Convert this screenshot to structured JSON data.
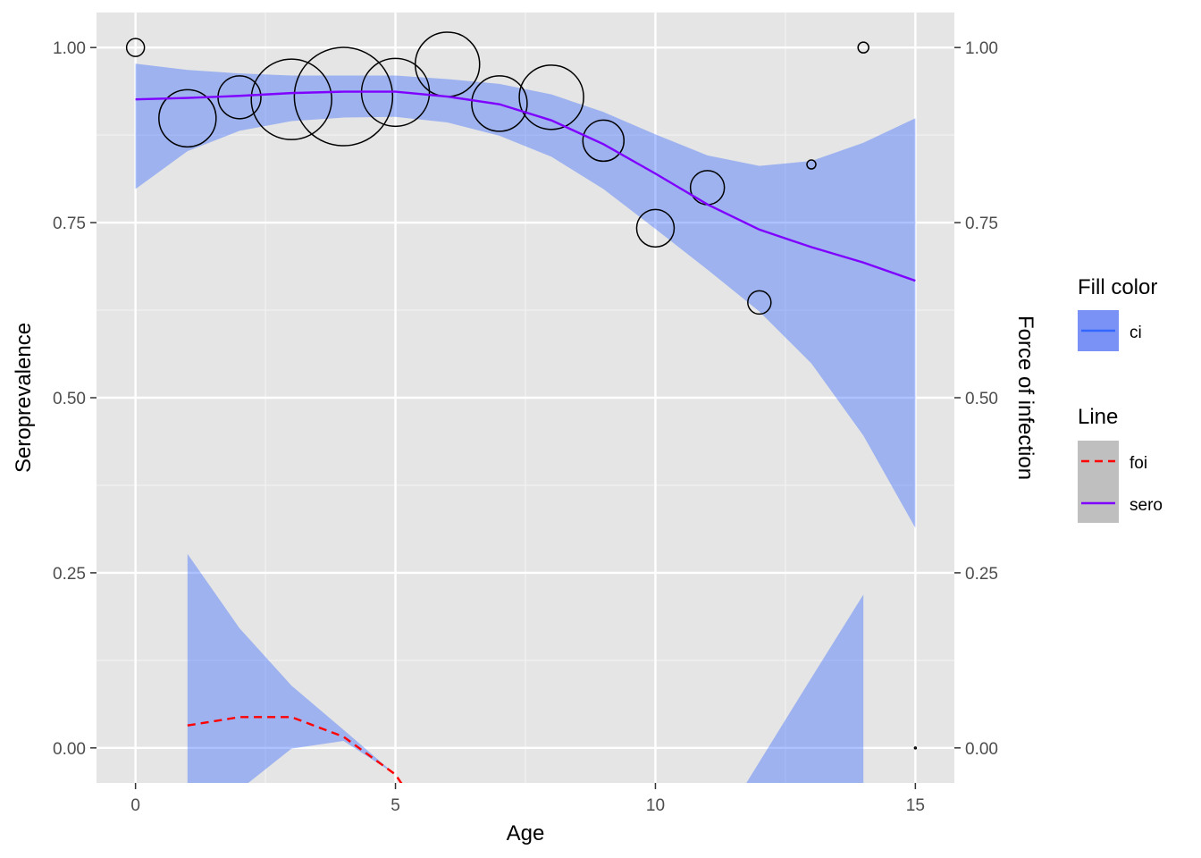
{
  "chart_data": {
    "type": "line",
    "xlabel": "Age",
    "ylabel": "Seroprevalence",
    "y2label": "Force of infection",
    "xlim": [
      -0.75,
      15.75
    ],
    "ylim": [
      -0.05,
      1.05
    ],
    "x_ticks": [
      0,
      5,
      10,
      15
    ],
    "x_tick_labels": [
      "0",
      "5",
      "10",
      "15"
    ],
    "y_ticks": [
      0,
      0.25,
      0.5,
      0.75,
      1.0
    ],
    "y_tick_labels": [
      "0.00",
      "0.25",
      "0.50",
      "0.75",
      "1.00"
    ],
    "y2_tick_labels": [
      "0.00",
      "0.25",
      "0.50",
      "0.75",
      "1.00"
    ],
    "grid": true,
    "background": "#e5e5e5",
    "legend_position": "right",
    "legends": [
      {
        "title": "Fill color",
        "entries": [
          {
            "label": "ci",
            "kind": "fill",
            "color": "#3366ff"
          }
        ]
      },
      {
        "title": "Line",
        "entries": [
          {
            "label": "foi",
            "kind": "dashed",
            "color": "#ff0000"
          },
          {
            "label": "sero",
            "kind": "solid",
            "color": "#7f00ff"
          }
        ]
      }
    ],
    "points": [
      {
        "x": 0,
        "y": 1.0,
        "r": 10
      },
      {
        "x": 1,
        "y": 0.899,
        "r": 32
      },
      {
        "x": 2,
        "y": 0.929,
        "r": 24
      },
      {
        "x": 3,
        "y": 0.926,
        "r": 45
      },
      {
        "x": 4,
        "y": 0.93,
        "r": 55
      },
      {
        "x": 5,
        "y": 0.936,
        "r": 38
      },
      {
        "x": 6,
        "y": 0.976,
        "r": 36
      },
      {
        "x": 7,
        "y": 0.92,
        "r": 31
      },
      {
        "x": 8,
        "y": 0.929,
        "r": 36
      },
      {
        "x": 9,
        "y": 0.867,
        "r": 23
      },
      {
        "x": 10,
        "y": 0.742,
        "r": 21
      },
      {
        "x": 11,
        "y": 0.8,
        "r": 19
      },
      {
        "x": 12,
        "y": 0.636,
        "r": 13
      },
      {
        "x": 13,
        "y": 0.833,
        "r": 5
      },
      {
        "x": 14,
        "y": 1.0,
        "r": 6
      },
      {
        "x": 15,
        "y": 0.0,
        "r": 1
      }
    ],
    "sero_line": {
      "x": [
        0,
        1,
        2,
        3,
        4,
        5,
        6,
        7,
        8,
        9,
        10,
        11,
        12,
        13,
        14,
        15
      ],
      "y": [
        0.926,
        0.928,
        0.931,
        0.935,
        0.937,
        0.937,
        0.93,
        0.919,
        0.896,
        0.862,
        0.82,
        0.776,
        0.74,
        0.715,
        0.693,
        0.667
      ]
    },
    "sero_ci": {
      "x": [
        0,
        1,
        2,
        3,
        4,
        5,
        6,
        7,
        8,
        9,
        10,
        11,
        12,
        13,
        14,
        15
      ],
      "upper": [
        0.977,
        0.968,
        0.963,
        0.96,
        0.96,
        0.96,
        0.955,
        0.948,
        0.933,
        0.908,
        0.876,
        0.846,
        0.831,
        0.838,
        0.864,
        0.899
      ],
      "lower": [
        0.798,
        0.852,
        0.881,
        0.895,
        0.9,
        0.901,
        0.893,
        0.874,
        0.844,
        0.798,
        0.741,
        0.683,
        0.623,
        0.549,
        0.446,
        0.314
      ]
    },
    "foi_line": {
      "x": [
        1,
        2,
        3,
        4,
        5,
        5.2
      ],
      "y": [
        0.032,
        0.044,
        0.044,
        0.016,
        -0.038,
        -0.06
      ]
    },
    "foi_ci_left": {
      "x": [
        1,
        2,
        3,
        4,
        5,
        5.15
      ],
      "upper": [
        0.277,
        0.171,
        0.089,
        0.026,
        -0.038,
        -0.06
      ],
      "lower": [
        -0.06,
        -0.06,
        -0.001,
        0.01,
        -0.038,
        -0.06
      ]
    },
    "foi_ci_right": {
      "x": [
        11.75,
        13,
        14
      ],
      "upper": [
        -0.05,
        0.1,
        0.219
      ],
      "lower": [
        -0.05,
        -0.05,
        -0.05
      ]
    }
  }
}
